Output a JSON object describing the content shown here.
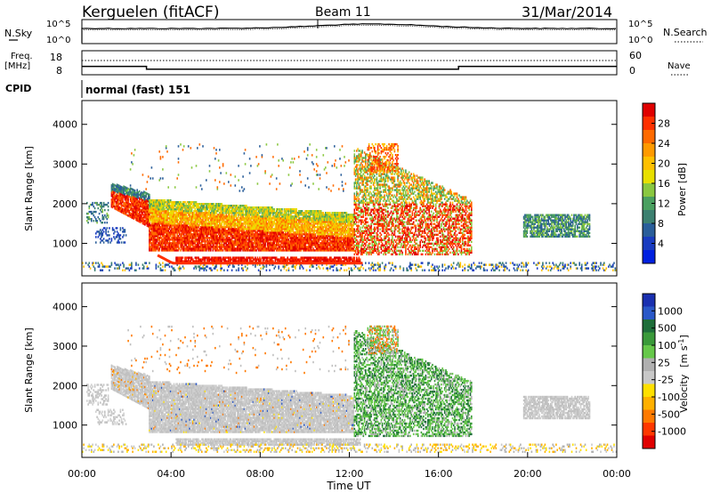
{
  "header": {
    "station": "Kerguelen (fitACF)",
    "beam": "Beam 11",
    "date": "31/Mar/2014"
  },
  "panels": {
    "nsky": {
      "label": "N.Sky",
      "left_ticks": [
        "10^5",
        "10^0"
      ],
      "right_ticks": [
        "10^5",
        "10^0"
      ],
      "right_label": "N.Search"
    },
    "freq": {
      "label_line1": "Freq.",
      "label_line2": "[MHz]",
      "left_ticks": [
        "18",
        "8"
      ],
      "right_ticks": [
        "60",
        "0"
      ],
      "right_label": "Nave"
    },
    "cpid": {
      "label": "CPID",
      "text": "normal (fast) 151"
    }
  },
  "colorbars": {
    "power": {
      "label": "Power [dB]",
      "ticks": [
        "28",
        "24",
        "20",
        "16",
        "12",
        "8",
        "4"
      ],
      "colors": [
        "#e00000",
        "#ff3000",
        "#ff6a00",
        "#ff9a00",
        "#ffc000",
        "#e8e000",
        "#8ac840",
        "#4aa060",
        "#3c8070",
        "#2a5e9a",
        "#1a3cc0",
        "#0020e0"
      ]
    },
    "velocity": {
      "label_main": "Velocity",
      "label_unit": "[m s",
      "label_exp": "-1",
      "label_close": "]",
      "ticks": [
        "1000",
        "500",
        "100",
        "25",
        "-25",
        "-100",
        "-500",
        "-1000"
      ],
      "colors": [
        "#1a30b0",
        "#2a58c8",
        "#1e6e3a",
        "#3a9a3a",
        "#66c84a",
        "#b0b0b0",
        "#c8c8c8",
        "#ffe000",
        "#ffb000",
        "#ff7a00",
        "#ff3800",
        "#e00000"
      ]
    }
  },
  "chart_data": {
    "type": "heatmap",
    "x_ticks": [
      "00:00",
      "04:00",
      "08:00",
      "12:00",
      "16:00",
      "20:00",
      "00:00"
    ],
    "xlabel": "Time UT",
    "ylabel": "Slant Range [km]",
    "y_ticks": [
      "4000",
      "3000",
      "2000",
      "1000"
    ],
    "ylim": [
      180,
      4600
    ],
    "xlim_hours": [
      0,
      24
    ],
    "frequency_mhz": [
      {
        "from": 0,
        "to": 2.9,
        "value": 12
      },
      {
        "from": 2.9,
        "to": 16.9,
        "value": 10
      },
      {
        "from": 16.9,
        "to": 24,
        "value": 12
      }
    ]
  }
}
